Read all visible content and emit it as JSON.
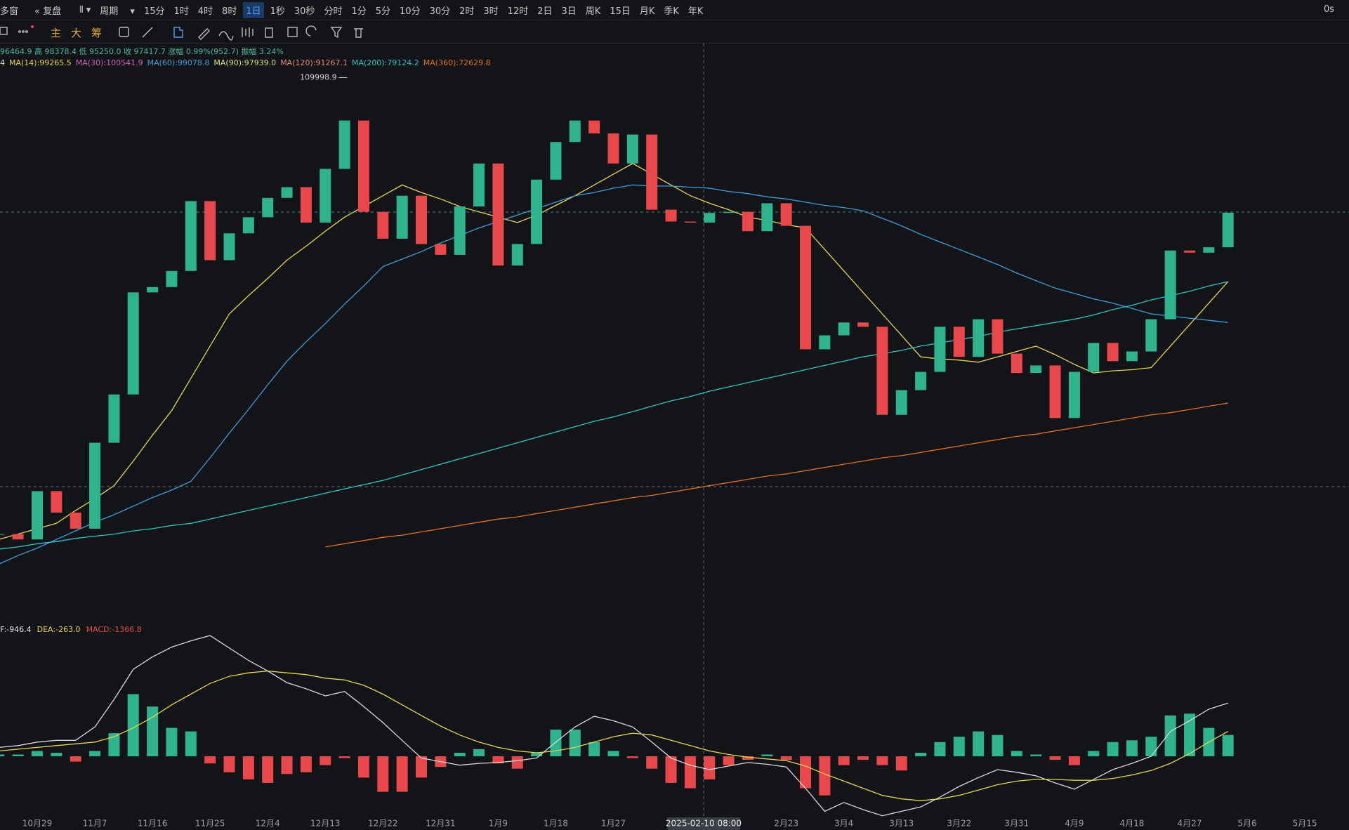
{
  "toolbar": {
    "multi_window": "多窗",
    "replay": "复盘",
    "period": "周期",
    "periods": [
      "15分",
      "1时",
      "4时",
      "8时",
      "1日",
      "1秒",
      "30秒",
      "分时",
      "1分",
      "5分",
      "10分",
      "30分",
      "2时",
      "3时",
      "12时",
      "2日",
      "3日",
      "周K",
      "15日",
      "月K",
      "季K",
      "年K"
    ],
    "timer": "0s"
  },
  "indicator_tabs": [
    "主",
    "大",
    "筹"
  ],
  "quote": "96464.9 高 98378.4 低 95250.0 收 97417.7 涨幅 0.99%(952.7) 振幅 3.24%",
  "chart_data": [
    {
      "type": "candlestick",
      "categories": [
        null,
        null,
        "10月29",
        null,
        null,
        "11月7",
        null,
        null,
        "11月16",
        null,
        null,
        "11月25",
        null,
        null,
        "12月4",
        null,
        null,
        "12月13",
        null,
        null,
        "12月22",
        null,
        null,
        "12月31",
        null,
        null,
        "1月9",
        null,
        null,
        "1月18",
        null,
        null,
        "1月27",
        null,
        null,
        null,
        null,
        null,
        null,
        null,
        null,
        "2月23",
        null,
        null,
        "3月4",
        null,
        null,
        "3月13",
        null,
        null,
        "3月22",
        null,
        null,
        "3月31",
        null,
        null,
        "4月9",
        null,
        null,
        "4月18",
        null,
        null,
        "4月27",
        null,
        null,
        "5月6",
        null,
        null,
        "5月15"
      ],
      "values": [
        67500,
        67000,
        71500,
        69500,
        68000,
        76000,
        80500,
        90000,
        90500,
        92000,
        98500,
        93000,
        95500,
        97000,
        98800,
        99800,
        96500,
        101500,
        106000,
        97500,
        95000,
        99000,
        94500,
        93500,
        98000,
        102000,
        92500,
        94500,
        100500,
        104000,
        106000,
        104800,
        102000,
        104700,
        97700,
        96600,
        96500,
        97400,
        97500,
        95700,
        98300,
        96200,
        84700,
        86000,
        87200,
        86800,
        78600,
        80900,
        82600,
        86800,
        84000,
        87500,
        84300,
        82500,
        83200,
        78300,
        82600,
        85300,
        83600,
        84500,
        87500,
        93900,
        93700,
        94200,
        97417.7,
        null,
        null,
        null,
        null
      ],
      "up_color": "#2fb38f",
      "down_color": "#e8474c",
      "ylim": [
        61000,
        113300
      ],
      "peak": 109998.9,
      "cursor_label": "2025-02-10 08:00",
      "ma_legend": [
        {
          "text": "4",
          "color": "#e6e6e6"
        },
        {
          "text": "MA(14):99265.5",
          "color": "#e8d44d"
        },
        {
          "text": "MA(30):100541.9",
          "color": "#d45fbf"
        },
        {
          "text": "MA(60):99078.8",
          "color": "#3b9ddd"
        },
        {
          "text": "MA(90):97939.0",
          "color": "#d6e07a"
        },
        {
          "text": "MA(120):91267.1",
          "color": "#e8877a"
        },
        {
          "text": "MA(200):79124.2",
          "color": "#29c5c6"
        },
        {
          "text": "MA(360):72629.8",
          "color": "#e0701e"
        }
      ],
      "ma_lines": [
        {
          "color": "#e8d44d",
          "values": [
            67000,
            67500,
            68000,
            68500,
            69700,
            70800,
            72000,
            74300,
            76700,
            79000,
            82000,
            85000,
            88000,
            89700,
            91300,
            93000,
            94300,
            95700,
            97000,
            98000,
            99000,
            100000,
            99300,
            98700,
            98000,
            97500,
            97000,
            96500,
            97200,
            98100,
            99000,
            100000,
            101000,
            102000,
            101000,
            100000,
            99000,
            98300,
            97700,
            97000,
            96700,
            96300,
            96000,
            94000,
            92000,
            90000,
            88000,
            86000,
            84000,
            83800,
            83700,
            83500,
            84000,
            84500,
            85000,
            84200,
            83300,
            82500,
            82700,
            82800,
            83000,
            85000,
            87000,
            89000,
            91000,
            null,
            null,
            null,
            null
          ]
        },
        {
          "color": "#3b9ddd",
          "values": [
            64700,
            65500,
            66200,
            67000,
            67800,
            68600,
            69300,
            70100,
            70900,
            71600,
            72400,
            74600,
            76900,
            79100,
            81400,
            83600,
            85400,
            87100,
            88900,
            90600,
            92400,
            93100,
            93800,
            94600,
            95300,
            96000,
            96600,
            97200,
            97800,
            98400,
            99000,
            99300,
            99700,
            100000,
            99900,
            99900,
            99800,
            99700,
            99400,
            99200,
            98900,
            98700,
            98400,
            98100,
            97900,
            97600,
            96900,
            96200,
            95400,
            94700,
            94000,
            93300,
            92600,
            91800,
            91100,
            90400,
            89900,
            89400,
            89000,
            88500,
            88000,
            87800,
            87600,
            87400,
            87200,
            null,
            null,
            null,
            null
          ]
        },
        {
          "color": "#29c5c6",
          "values": [
            66100,
            66300,
            66600,
            66800,
            67100,
            67300,
            67500,
            67800,
            68000,
            68300,
            68500,
            68900,
            69300,
            69700,
            70100,
            70500,
            70900,
            71300,
            71700,
            72100,
            72500,
            73000,
            73500,
            74000,
            74500,
            75000,
            75500,
            76000,
            76500,
            77000,
            77500,
            78000,
            78400,
            78900,
            79400,
            79900,
            80300,
            80800,
            81200,
            81600,
            82000,
            82400,
            82800,
            83200,
            83600,
            84000,
            84300,
            84600,
            85000,
            85300,
            85600,
            85900,
            86300,
            86600,
            86900,
            87200,
            87500,
            87900,
            88400,
            88800,
            89300,
            89700,
            90100,
            90600,
            91000,
            null,
            null,
            null,
            null
          ]
        },
        {
          "color": "#e0701e",
          "values": [
            null,
            null,
            null,
            null,
            null,
            null,
            null,
            null,
            null,
            null,
            null,
            null,
            null,
            null,
            null,
            null,
            null,
            66300,
            66600,
            66900,
            67200,
            67400,
            67700,
            68000,
            68300,
            68600,
            68900,
            69100,
            69400,
            69700,
            70000,
            70300,
            70600,
            70900,
            71100,
            71400,
            71700,
            72000,
            72300,
            72600,
            72900,
            73100,
            73400,
            73700,
            74000,
            74300,
            74600,
            74800,
            75100,
            75400,
            75700,
            76000,
            76300,
            76600,
            76800,
            77100,
            77400,
            77700,
            78000,
            78300,
            78600,
            78800,
            79100,
            79400,
            79700,
            null,
            null,
            null,
            null
          ]
        }
      ]
    },
    {
      "type": "macd",
      "legend": [
        {
          "text": "F:-946.4",
          "color": "#e6e6e6"
        },
        {
          "text": "DEA:-263.0",
          "color": "#e8d44d"
        },
        {
          "text": "MACD:-1366.8",
          "color": "#e8474c"
        }
      ],
      "ylim": [
        -3400,
        7000
      ],
      "up_color": "#2fb38f",
      "down_color": "#e8474c",
      "histogram": [
        100,
        100,
        300,
        200,
        -300,
        300,
        1300,
        3500,
        2800,
        1600,
        1400,
        -400,
        -900,
        -1300,
        -1500,
        -1000,
        -900,
        -500,
        -100,
        -1200,
        -2000,
        -2000,
        -1200,
        -600,
        200,
        400,
        -400,
        -700,
        200,
        1500,
        1500,
        800,
        300,
        -100,
        -700,
        -1500,
        -1800,
        -1300,
        -500,
        -200,
        100,
        -200,
        -1800,
        -2200,
        -500,
        -200,
        -500,
        -800,
        200,
        800,
        1100,
        1400,
        1200,
        300,
        100,
        -200,
        -500,
        300,
        800,
        900,
        1100,
        2300,
        2400,
        1600,
        1200,
        null,
        null,
        null,
        null
      ],
      "dif": {
        "color": "#d8d8d8",
        "values": [
          500,
          600,
          800,
          900,
          900,
          1650,
          3200,
          4900,
          5600,
          6150,
          6500,
          6800,
          6100,
          5400,
          4800,
          4150,
          3800,
          3400,
          3650,
          2800,
          1900,
          900,
          -100,
          -300,
          -500,
          -400,
          -350,
          -250,
          -100,
          800,
          1650,
          2250,
          2000,
          1650,
          800,
          -100,
          -500,
          -750,
          -550,
          -350,
          -450,
          -600,
          -1800,
          -3100,
          -2600,
          -3000,
          -3350,
          -3100,
          -2850,
          -2300,
          -1700,
          -1200,
          -750,
          -900,
          -1100,
          -1500,
          -1850,
          -1300,
          -750,
          -400,
          0,
          1400,
          2000,
          2650,
          3000,
          null,
          null,
          null,
          null
        ]
      },
      "dea": {
        "color": "#e8d44d",
        "values": [
          300,
          400,
          500,
          600,
          700,
          800,
          1100,
          1600,
          2200,
          2900,
          3500,
          4100,
          4500,
          4700,
          4800,
          4700,
          4600,
          4400,
          4300,
          4000,
          3500,
          2900,
          2300,
          1700,
          1200,
          800,
          500,
          300,
          200,
          300,
          500,
          800,
          1100,
          1300,
          1200,
          900,
          600,
          300,
          100,
          -50,
          -150,
          -250,
          -550,
          -1000,
          -1400,
          -1800,
          -2200,
          -2400,
          -2500,
          -2400,
          -2200,
          -1900,
          -1600,
          -1400,
          -1300,
          -1300,
          -1350,
          -1350,
          -1250,
          -1050,
          -800,
          -400,
          150,
          800,
          1400,
          null,
          null,
          null,
          null
        ]
      }
    }
  ]
}
